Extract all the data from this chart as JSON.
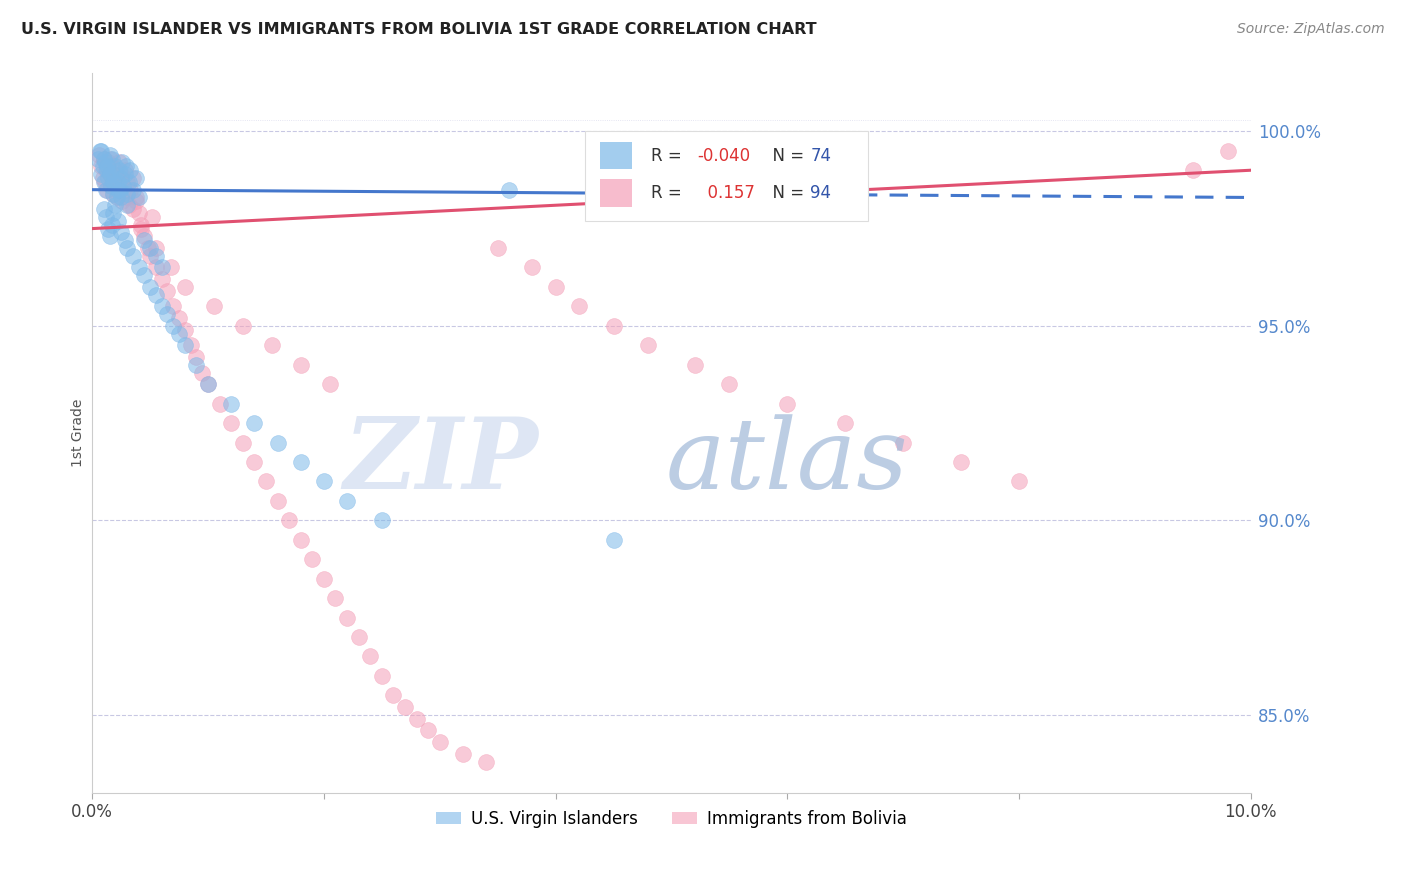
{
  "title": "U.S. VIRGIN ISLANDER VS IMMIGRANTS FROM BOLIVIA 1ST GRADE CORRELATION CHART",
  "source": "Source: ZipAtlas.com",
  "ylabel": "1st Grade",
  "xlim": [
    0.0,
    10.0
  ],
  "ylim": [
    83.0,
    101.5
  ],
  "y_tick_positions": [
    85.0,
    90.0,
    95.0,
    100.0
  ],
  "y_tick_labels": [
    "85.0%",
    "90.0%",
    "95.0%",
    "100.0%"
  ],
  "r_blue": -0.04,
  "n_blue": 74,
  "r_pink": 0.157,
  "n_pink": 94,
  "blue_color": "#7DB8E8",
  "pink_color": "#F4A0B8",
  "trend_blue_color": "#4477CC",
  "trend_pink_color": "#E05070",
  "legend_label_blue": "U.S. Virgin Islanders",
  "legend_label_pink": "Immigrants from Bolivia",
  "background_color": "#FFFFFF",
  "blue_scatter_x": [
    0.05,
    0.07,
    0.08,
    0.09,
    0.1,
    0.11,
    0.12,
    0.13,
    0.14,
    0.15,
    0.16,
    0.17,
    0.18,
    0.19,
    0.2,
    0.21,
    0.22,
    0.23,
    0.24,
    0.25,
    0.26,
    0.27,
    0.28,
    0.29,
    0.3,
    0.32,
    0.33,
    0.35,
    0.38,
    0.4,
    0.1,
    0.12,
    0.14,
    0.15,
    0.17,
    0.18,
    0.2,
    0.22,
    0.25,
    0.28,
    0.3,
    0.35,
    0.4,
    0.45,
    0.5,
    0.55,
    0.6,
    0.65,
    0.7,
    0.75,
    0.8,
    0.9,
    1.0,
    1.2,
    1.4,
    1.6,
    1.8,
    2.0,
    2.2,
    2.5,
    0.08,
    0.1,
    0.13,
    0.15,
    0.18,
    0.22,
    0.25,
    0.3,
    3.6,
    0.45,
    0.5,
    0.55,
    0.6,
    4.5
  ],
  "blue_scatter_y": [
    99.3,
    99.5,
    98.9,
    99.1,
    98.7,
    99.2,
    98.5,
    99.0,
    98.8,
    99.4,
    98.6,
    99.3,
    98.4,
    98.9,
    99.1,
    98.3,
    98.7,
    99.0,
    98.5,
    98.8,
    99.2,
    98.6,
    98.9,
    99.1,
    98.4,
    98.7,
    99.0,
    98.5,
    98.8,
    98.3,
    98.0,
    97.8,
    97.5,
    97.3,
    97.6,
    97.9,
    98.1,
    97.7,
    97.4,
    97.2,
    97.0,
    96.8,
    96.5,
    96.3,
    96.0,
    95.8,
    95.5,
    95.3,
    95.0,
    94.8,
    94.5,
    94.0,
    93.5,
    93.0,
    92.5,
    92.0,
    91.5,
    91.0,
    90.5,
    90.0,
    99.5,
    99.3,
    99.1,
    98.9,
    98.7,
    98.5,
    98.3,
    98.1,
    98.5,
    97.2,
    97.0,
    96.8,
    96.5,
    89.5
  ],
  "pink_scatter_x": [
    0.06,
    0.08,
    0.09,
    0.1,
    0.11,
    0.12,
    0.13,
    0.14,
    0.15,
    0.16,
    0.17,
    0.18,
    0.19,
    0.2,
    0.21,
    0.22,
    0.23,
    0.24,
    0.25,
    0.26,
    0.27,
    0.28,
    0.29,
    0.3,
    0.32,
    0.33,
    0.35,
    0.38,
    0.4,
    0.42,
    0.45,
    0.48,
    0.5,
    0.55,
    0.6,
    0.65,
    0.7,
    0.75,
    0.8,
    0.85,
    0.9,
    0.95,
    1.0,
    1.1,
    1.2,
    1.3,
    1.4,
    1.5,
    1.6,
    1.7,
    1.8,
    1.9,
    2.0,
    2.1,
    2.2,
    2.3,
    2.4,
    2.5,
    2.6,
    2.7,
    2.8,
    2.9,
    3.0,
    3.2,
    3.4,
    3.5,
    3.8,
    4.0,
    4.2,
    4.5,
    4.8,
    5.2,
    5.5,
    6.0,
    6.5,
    7.0,
    7.5,
    8.0,
    0.35,
    0.42,
    0.55,
    0.68,
    0.8,
    1.05,
    1.3,
    1.55,
    1.8,
    2.05,
    9.5,
    0.15,
    0.25,
    0.38,
    0.52,
    9.8
  ],
  "pink_scatter_y": [
    99.4,
    99.1,
    98.8,
    99.3,
    98.7,
    99.0,
    98.5,
    99.2,
    98.9,
    98.6,
    99.1,
    98.4,
    98.8,
    99.0,
    98.3,
    98.7,
    99.2,
    98.5,
    98.9,
    98.2,
    98.6,
    99.0,
    98.3,
    98.7,
    98.1,
    98.5,
    98.8,
    98.2,
    97.9,
    97.6,
    97.3,
    97.0,
    96.8,
    96.5,
    96.2,
    95.9,
    95.5,
    95.2,
    94.9,
    94.5,
    94.2,
    93.8,
    93.5,
    93.0,
    92.5,
    92.0,
    91.5,
    91.0,
    90.5,
    90.0,
    89.5,
    89.0,
    88.5,
    88.0,
    87.5,
    87.0,
    86.5,
    86.0,
    85.5,
    85.2,
    84.9,
    84.6,
    84.3,
    84.0,
    83.8,
    97.0,
    96.5,
    96.0,
    95.5,
    95.0,
    94.5,
    94.0,
    93.5,
    93.0,
    92.5,
    92.0,
    91.5,
    91.0,
    98.0,
    97.5,
    97.0,
    96.5,
    96.0,
    95.5,
    95.0,
    94.5,
    94.0,
    93.5,
    99.0,
    99.3,
    98.8,
    98.3,
    97.8,
    99.5
  ]
}
